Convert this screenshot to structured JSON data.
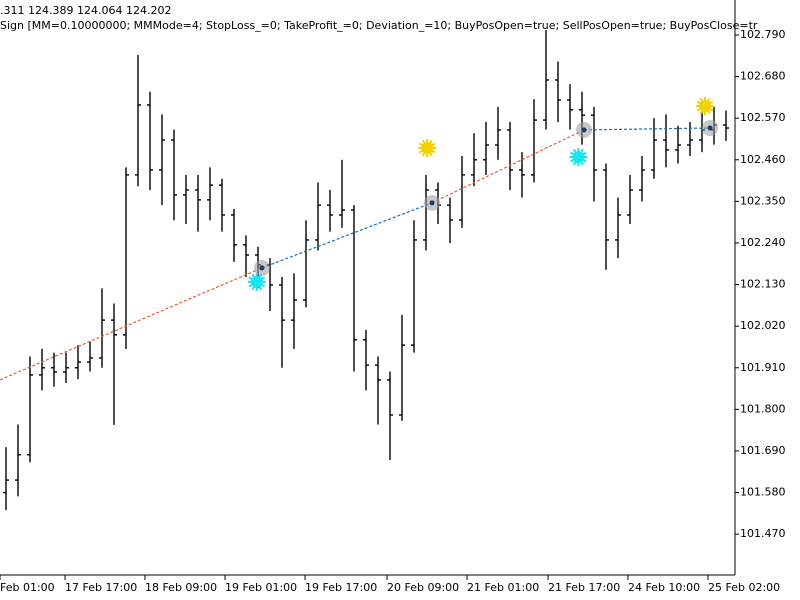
{
  "chart_data": {
    "type": "ohlc",
    "header": ".311 124.389 124.064 124.202",
    "subtitle": "Sign [MM=0.10000000; MMMode=4; StopLoss_=0; TakeProfit_=0; Deviation_=10; BuyPosOpen=true; SellPosOpen=true; BuyPosClose=tr",
    "color": "#000000",
    "ohlc": [
      [
        101.58,
        101.7,
        101.534,
        101.613
      ],
      [
        101.613,
        101.76,
        101.57,
        101.68
      ],
      [
        101.68,
        101.94,
        101.66,
        101.891
      ],
      [
        101.891,
        101.96,
        101.85,
        101.91
      ],
      [
        101.91,
        101.95,
        101.86,
        101.899
      ],
      [
        101.899,
        101.95,
        101.87,
        101.91
      ],
      [
        101.91,
        101.97,
        101.88,
        101.925
      ],
      [
        101.925,
        101.98,
        101.9,
        101.936
      ],
      [
        101.936,
        102.12,
        101.91,
        102.036
      ],
      [
        102.036,
        102.08,
        101.759,
        101.997
      ],
      [
        101.997,
        102.44,
        101.96,
        102.42
      ],
      [
        102.42,
        102.737,
        102.39,
        102.605
      ],
      [
        102.605,
        102.64,
        102.38,
        102.433
      ],
      [
        102.433,
        102.58,
        102.34,
        102.512
      ],
      [
        102.512,
        102.54,
        102.3,
        102.367
      ],
      [
        102.367,
        102.42,
        102.29,
        102.38
      ],
      [
        102.38,
        102.42,
        102.27,
        102.354
      ],
      [
        102.354,
        102.44,
        102.3,
        102.393
      ],
      [
        102.393,
        102.41,
        102.27,
        102.314
      ],
      [
        102.314,
        102.33,
        102.19,
        102.235
      ],
      [
        102.235,
        102.26,
        102.15,
        102.208
      ],
      [
        102.208,
        102.23,
        102.12,
        102.182
      ],
      [
        102.182,
        102.2,
        102.06,
        102.129
      ],
      [
        102.129,
        102.15,
        101.91,
        102.036
      ],
      [
        102.036,
        102.16,
        101.96,
        102.089
      ],
      [
        102.089,
        102.3,
        102.07,
        102.248
      ],
      [
        102.248,
        102.4,
        102.22,
        102.34
      ],
      [
        102.34,
        102.38,
        102.27,
        102.314
      ],
      [
        102.314,
        102.46,
        102.28,
        102.327
      ],
      [
        102.327,
        102.34,
        101.9,
        101.984
      ],
      [
        101.984,
        102.01,
        101.85,
        101.917
      ],
      [
        101.917,
        101.94,
        101.76,
        101.878
      ],
      [
        101.878,
        101.9,
        101.666,
        101.785
      ],
      [
        101.785,
        102.05,
        101.77,
        101.97
      ],
      [
        101.97,
        102.3,
        101.95,
        102.248
      ],
      [
        102.248,
        102.42,
        102.22,
        102.38
      ],
      [
        102.38,
        102.4,
        102.29,
        102.34
      ],
      [
        102.34,
        102.36,
        102.24,
        102.301
      ],
      [
        102.301,
        102.47,
        102.28,
        102.42
      ],
      [
        102.42,
        102.53,
        102.39,
        102.46
      ],
      [
        102.46,
        102.56,
        102.42,
        102.499
      ],
      [
        102.499,
        102.6,
        102.46,
        102.539
      ],
      [
        102.539,
        102.56,
        102.38,
        102.433
      ],
      [
        102.433,
        102.48,
        102.36,
        102.42
      ],
      [
        102.42,
        102.62,
        102.4,
        102.565
      ],
      [
        102.565,
        102.803,
        102.54,
        102.671
      ],
      [
        102.671,
        102.72,
        102.56,
        102.618
      ],
      [
        102.618,
        102.66,
        102.54,
        102.592
      ],
      [
        102.592,
        102.64,
        102.5,
        102.578
      ],
      [
        102.578,
        102.6,
        102.35,
        102.433
      ],
      [
        102.433,
        102.45,
        102.169,
        102.248
      ],
      [
        102.248,
        102.36,
        102.2,
        102.314
      ],
      [
        102.314,
        102.42,
        102.29,
        102.38
      ],
      [
        102.38,
        102.47,
        102.35,
        102.433
      ],
      [
        102.433,
        102.57,
        102.41,
        102.512
      ],
      [
        102.512,
        102.58,
        102.44,
        102.486
      ],
      [
        102.486,
        102.55,
        102.45,
        102.499
      ],
      [
        102.499,
        102.56,
        102.47,
        102.512
      ],
      [
        102.512,
        102.59,
        102.48,
        102.539
      ],
      [
        102.539,
        102.6,
        102.5,
        102.552
      ],
      [
        102.552,
        102.59,
        102.51,
        102.544
      ]
    ],
    "trade_lines": [
      {
        "color": "#e0603a",
        "x": [
          -0.5,
          21.33
        ],
        "y": [
          101.878,
          102.174
        ]
      },
      {
        "color": "#1f6fb2",
        "x": [
          21.33,
          35.5
        ],
        "y": [
          102.174,
          102.346
        ]
      },
      {
        "color": "#e0603a",
        "x": [
          35.5,
          48.17
        ],
        "y": [
          102.346,
          102.539
        ]
      },
      {
        "color": "#1f6fb2",
        "x": [
          48.17,
          58.67
        ],
        "y": [
          102.539,
          102.544
        ]
      }
    ],
    "entries": {
      "color": "#9a9a9a",
      "x": [
        21.33,
        35.5,
        48.17,
        58.67
      ],
      "y": [
        102.174,
        102.346,
        102.539,
        102.544
      ]
    },
    "buy_signals": {
      "color": "#19e3f0",
      "x": [
        20.9,
        47.7
      ],
      "y": [
        102.137,
        102.467
      ]
    },
    "sell_signals": {
      "color": "#f5d000",
      "x": [
        35.1,
        58.25
      ],
      "y": [
        102.491,
        102.602
      ]
    },
    "xlim": [
      -0.5,
      60.75
    ],
    "xticks": [
      {
        "value": -0.5,
        "label": "Feb 01:00"
      },
      {
        "value": 4.92,
        "label": "17 Feb 17:00"
      },
      {
        "value": 11.58,
        "label": "18 Feb 09:00"
      },
      {
        "value": 18.25,
        "label": "19 Feb 01:00"
      },
      {
        "value": 24.92,
        "label": "19 Feb 17:00"
      },
      {
        "value": 31.75,
        "label": "20 Feb 09:00"
      },
      {
        "value": 38.42,
        "label": "21 Feb 01:00"
      },
      {
        "value": 45.17,
        "label": "21 Feb 17:00"
      },
      {
        "value": 51.83,
        "label": "24 Feb 10:00"
      },
      {
        "value": 58.5,
        "label": "25 Feb 02:00"
      }
    ],
    "ylim": [
      101.362,
      102.8825
    ],
    "yticks": [
      {
        "value": 102.79,
        "label": "102.790"
      },
      {
        "value": 102.68,
        "label": "102.680"
      },
      {
        "value": 102.57,
        "label": "102.570"
      },
      {
        "value": 102.46,
        "label": "102.460"
      },
      {
        "value": 102.35,
        "label": "102.350"
      },
      {
        "value": 102.24,
        "label": "102.240"
      },
      {
        "value": 102.13,
        "label": "102.130"
      },
      {
        "value": 102.02,
        "label": "102.020"
      },
      {
        "value": 101.91,
        "label": "101.910"
      },
      {
        "value": 101.8,
        "label": "101.800"
      },
      {
        "value": 101.69,
        "label": "101.690"
      },
      {
        "value": 101.58,
        "label": "101.580"
      },
      {
        "value": 101.47,
        "label": "101.470"
      }
    ]
  }
}
